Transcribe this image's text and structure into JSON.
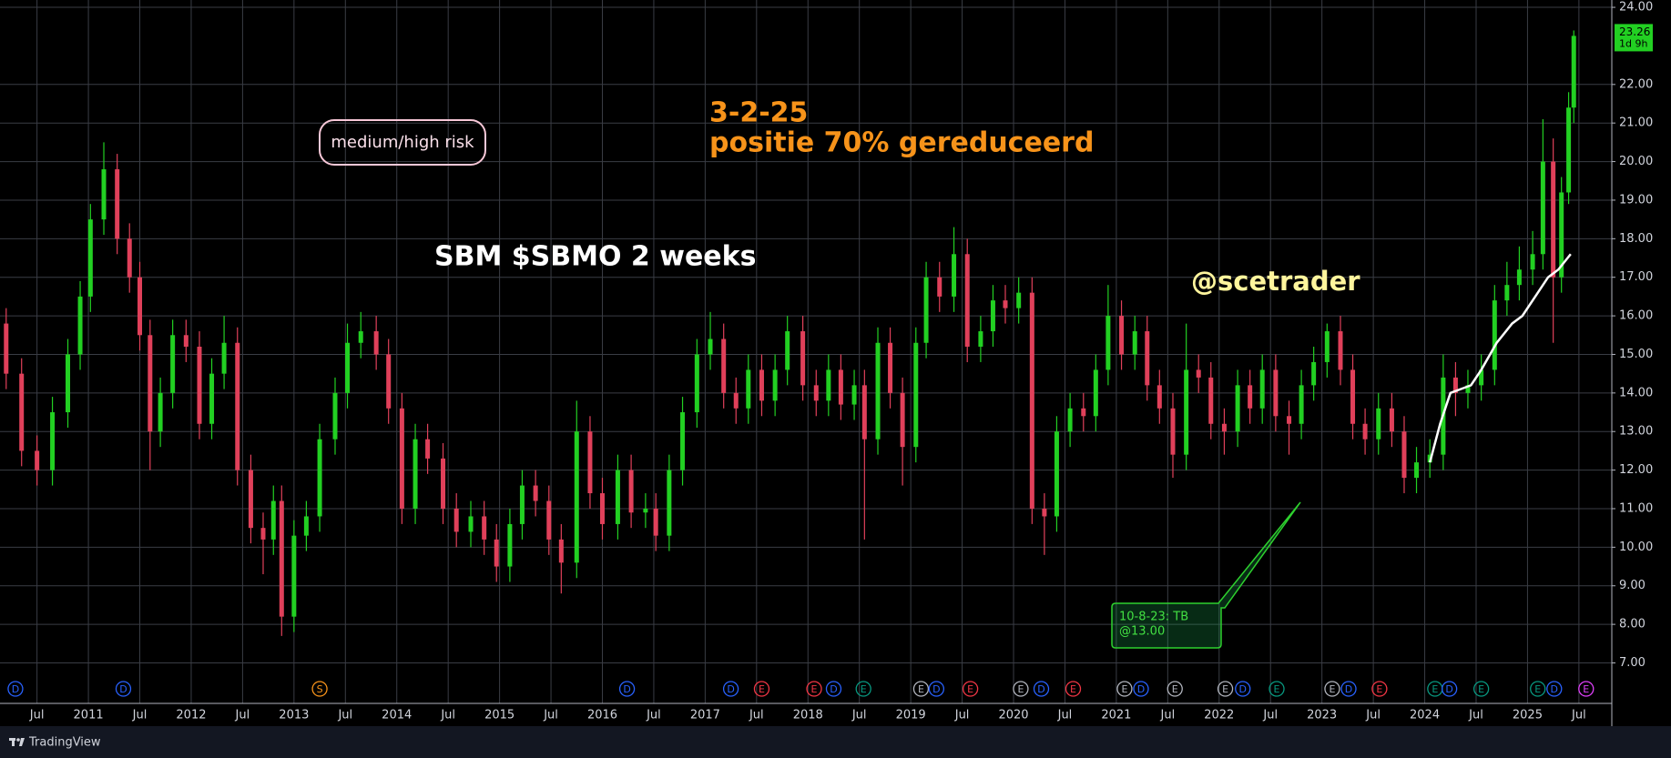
{
  "chart_data": {
    "type": "candlestick",
    "title": "SBM $SBMO 2 weeks",
    "risk_label": "medium/high risk",
    "note_date": "3-2-25",
    "note_text": "positie 70% gereduceerd",
    "author": "@scetrader",
    "callout": [
      "10-8-23: TB",
      "@13.00"
    ],
    "brand": "TradingView",
    "last_price": 23.26,
    "countdown": "1d 9h",
    "up_color": "#22d022",
    "down_color": "#e0405a",
    "grid": true,
    "xlim": [
      2010.14,
      2025.82
    ],
    "ylim": [
      5.95,
      24.19
    ],
    "yticks": [
      {
        "value": 7,
        "label": "7.00"
      },
      {
        "value": 8,
        "label": "8.00"
      },
      {
        "value": 9,
        "label": "9.00"
      },
      {
        "value": 10,
        "label": "10.00"
      },
      {
        "value": 11,
        "label": "11.00"
      },
      {
        "value": 12,
        "label": "12.00"
      },
      {
        "value": 13,
        "label": "13.00"
      },
      {
        "value": 14,
        "label": "14.00"
      },
      {
        "value": 15,
        "label": "15.00"
      },
      {
        "value": 16,
        "label": "16.00"
      },
      {
        "value": 17,
        "label": "17.00"
      },
      {
        "value": 18,
        "label": "18.00"
      },
      {
        "value": 19,
        "label": "19.00"
      },
      {
        "value": 20,
        "label": "20.00"
      },
      {
        "value": 21,
        "label": "21.00"
      },
      {
        "value": 22,
        "label": "22.00"
      },
      {
        "value": 24,
        "label": "24.00"
      }
    ],
    "xticks": [
      {
        "value": 2010.5,
        "label": "Jul"
      },
      2011,
      {
        "value": 2011.5,
        "label": "Jul"
      },
      2012,
      {
        "value": 2012.5,
        "label": "Jul"
      },
      2013,
      {
        "value": 2013.5,
        "label": "Jul"
      },
      2014,
      {
        "value": 2014.5,
        "label": "Jul"
      },
      2015,
      {
        "value": 2015.5,
        "label": "Jul"
      },
      2016,
      {
        "value": 2016.5,
        "label": "Jul"
      },
      2017,
      {
        "value": 2017.5,
        "label": "Jul"
      },
      2018,
      {
        "value": 2018.5,
        "label": "Jul"
      },
      2019,
      {
        "value": 2019.5,
        "label": "Jul"
      },
      2020,
      {
        "value": 2020.5,
        "label": "Jul"
      },
      2021,
      {
        "value": 2021.5,
        "label": "Jul"
      },
      2022,
      {
        "value": 2022.5,
        "label": "Jul"
      },
      2023,
      {
        "value": 2023.5,
        "label": "Jul"
      },
      2024,
      {
        "value": 2024.5,
        "label": "Jul"
      },
      2025,
      {
        "value": 2025.5,
        "label": "Jul"
      }
    ],
    "x": [
      2010.2,
      2010.35,
      2010.5,
      2010.65,
      2010.8,
      2010.92,
      2011.02,
      2011.15,
      2011.28,
      2011.4,
      2011.5,
      2011.6,
      2011.7,
      2011.82,
      2011.95,
      2012.08,
      2012.2,
      2012.32,
      2012.45,
      2012.58,
      2012.7,
      2012.8,
      2012.88,
      2013.0,
      2013.12,
      2013.25,
      2013.4,
      2013.52,
      2013.65,
      2013.8,
      2013.92,
      2014.05,
      2014.18,
      2014.3,
      2014.45,
      2014.58,
      2014.72,
      2014.85,
      2014.97,
      2015.1,
      2015.22,
      2015.35,
      2015.48,
      2015.6,
      2015.75,
      2015.88,
      2016.0,
      2016.15,
      2016.28,
      2016.42,
      2016.52,
      2016.65,
      2016.78,
      2016.92,
      2017.05,
      2017.18,
      2017.3,
      2017.42,
      2017.55,
      2017.68,
      2017.8,
      2017.95,
      2018.08,
      2018.2,
      2018.32,
      2018.45,
      2018.55,
      2018.68,
      2018.8,
      2018.92,
      2019.05,
      2019.15,
      2019.28,
      2019.42,
      2019.55,
      2019.68,
      2019.8,
      2019.92,
      2020.05,
      2020.18,
      2020.3,
      2020.42,
      2020.55,
      2020.68,
      2020.8,
      2020.92,
      2021.05,
      2021.18,
      2021.3,
      2021.42,
      2021.55,
      2021.68,
      2021.8,
      2021.92,
      2022.05,
      2022.18,
      2022.3,
      2022.42,
      2022.55,
      2022.68,
      2022.8,
      2022.92,
      2023.05,
      2023.18,
      2023.3,
      2023.42,
      2023.55,
      2023.68,
      2023.8,
      2023.92,
      2024.05,
      2024.18,
      2024.3,
      2024.42,
      2024.55,
      2024.68,
      2024.8,
      2024.92,
      2025.05,
      2025.15,
      2025.25,
      2025.33,
      2025.4,
      2025.45
    ],
    "open": [
      15.8,
      14.5,
      12.5,
      12.0,
      13.5,
      15.0,
      16.5,
      18.5,
      19.8,
      18.0,
      17.0,
      15.5,
      13.0,
      14.0,
      15.5,
      15.2,
      13.2,
      14.5,
      15.3,
      12.0,
      10.5,
      10.2,
      11.2,
      8.2,
      10.3,
      10.8,
      12.8,
      14.0,
      15.3,
      15.6,
      15.0,
      13.6,
      11.0,
      12.8,
      12.3,
      11.0,
      10.4,
      10.8,
      10.2,
      9.5,
      10.6,
      11.6,
      11.2,
      10.2,
      9.6,
      13.0,
      11.4,
      10.6,
      12.0,
      10.9,
      11.0,
      10.3,
      12.0,
      13.5,
      15.0,
      15.4,
      14.0,
      13.6,
      14.6,
      13.8,
      14.6,
      15.6,
      14.2,
      13.8,
      14.6,
      13.7,
      14.2,
      12.8,
      15.3,
      14.0,
      12.6,
      15.3,
      17.0,
      16.5,
      17.6,
      15.2,
      15.6,
      16.4,
      16.2,
      16.6,
      11.0,
      10.8,
      13.0,
      13.6,
      13.4,
      14.6,
      16.0,
      15.0,
      15.6,
      14.2,
      13.6,
      12.4,
      14.6,
      14.4,
      13.2,
      13.0,
      14.2,
      13.6,
      14.6,
      13.4,
      13.2,
      14.2,
      14.8,
      15.6,
      14.6,
      13.2,
      12.8,
      13.6,
      13.0,
      11.8,
      12.2,
      12.4,
      14.4,
      14.0,
      14.2,
      14.6,
      16.4,
      16.8,
      17.2,
      17.6,
      20.0,
      17.0,
      19.2,
      21.4
    ],
    "high": [
      16.2,
      14.9,
      12.9,
      13.9,
      15.4,
      16.9,
      18.9,
      20.5,
      20.2,
      18.4,
      17.4,
      15.9,
      14.4,
      15.9,
      15.9,
      15.6,
      14.9,
      16.0,
      15.7,
      12.4,
      10.9,
      11.6,
      11.6,
      10.7,
      11.2,
      13.2,
      14.4,
      15.8,
      16.1,
      16.0,
      15.4,
      14.0,
      13.2,
      13.2,
      12.7,
      11.4,
      11.2,
      11.2,
      10.6,
      11.0,
      12.0,
      12.0,
      11.6,
      10.6,
      13.8,
      13.4,
      11.8,
      12.4,
      12.4,
      11.4,
      11.4,
      12.4,
      13.9,
      15.4,
      16.1,
      15.8,
      14.4,
      15.0,
      15.0,
      15.0,
      16.0,
      16.0,
      14.6,
      15.0,
      15.0,
      14.6,
      14.6,
      15.7,
      15.7,
      14.4,
      15.7,
      17.4,
      17.4,
      18.3,
      18.0,
      16.0,
      16.8,
      16.8,
      17.0,
      17.0,
      11.4,
      13.4,
      14.0,
      14.0,
      15.0,
      16.8,
      16.4,
      16.0,
      16.0,
      14.6,
      14.0,
      15.8,
      15.0,
      14.8,
      13.6,
      14.6,
      14.6,
      15.0,
      15.0,
      13.8,
      14.6,
      15.2,
      15.8,
      16.0,
      15.0,
      13.6,
      14.0,
      14.0,
      13.4,
      12.6,
      12.8,
      15.0,
      14.8,
      14.6,
      15.0,
      16.8,
      17.4,
      17.8,
      18.2,
      21.1,
      20.6,
      19.6,
      21.8,
      23.4
    ],
    "low": [
      14.1,
      12.1,
      11.6,
      11.6,
      13.1,
      14.6,
      16.1,
      18.1,
      17.6,
      16.6,
      15.1,
      12.0,
      12.6,
      13.6,
      14.8,
      12.8,
      12.8,
      14.1,
      11.6,
      10.1,
      9.3,
      9.8,
      7.7,
      7.8,
      9.9,
      10.4,
      12.4,
      13.6,
      14.9,
      14.6,
      13.2,
      10.6,
      10.6,
      11.9,
      10.6,
      10.0,
      10.0,
      9.8,
      9.1,
      9.1,
      10.2,
      10.8,
      9.8,
      8.8,
      9.2,
      11.0,
      10.2,
      10.2,
      10.5,
      10.5,
      9.9,
      9.9,
      11.6,
      13.1,
      14.6,
      13.6,
      13.2,
      13.2,
      13.4,
      13.4,
      14.2,
      13.8,
      13.4,
      13.4,
      13.3,
      13.3,
      10.2,
      12.4,
      13.6,
      11.6,
      12.2,
      14.9,
      16.1,
      16.1,
      14.8,
      14.8,
      15.2,
      15.8,
      15.8,
      10.6,
      9.8,
      10.4,
      12.6,
      13.0,
      13.0,
      14.2,
      14.6,
      14.6,
      13.8,
      13.2,
      11.8,
      12.0,
      14.0,
      12.8,
      12.4,
      12.6,
      13.2,
      13.2,
      13.0,
      12.4,
      12.8,
      13.8,
      14.4,
      14.2,
      12.8,
      12.4,
      12.4,
      12.6,
      11.4,
      11.4,
      11.8,
      12.0,
      13.4,
      13.6,
      13.8,
      14.2,
      16.0,
      16.4,
      16.8,
      17.2,
      15.3,
      16.6,
      18.9,
      21.0
    ],
    "close": [
      14.5,
      12.5,
      12.0,
      13.5,
      15.0,
      16.5,
      18.5,
      19.8,
      18.0,
      17.0,
      15.5,
      13.0,
      14.0,
      15.5,
      15.2,
      13.2,
      14.5,
      15.3,
      12.0,
      10.5,
      10.2,
      11.2,
      8.2,
      10.3,
      10.8,
      12.8,
      14.0,
      15.3,
      15.6,
      15.0,
      13.6,
      11.0,
      12.8,
      12.3,
      11.0,
      10.4,
      10.8,
      10.2,
      9.5,
      10.6,
      11.6,
      11.2,
      10.2,
      9.6,
      13.0,
      11.4,
      10.6,
      12.0,
      10.9,
      11.0,
      10.3,
      12.0,
      13.5,
      15.0,
      15.4,
      14.0,
      13.6,
      14.6,
      13.8,
      14.6,
      15.6,
      14.2,
      13.8,
      14.6,
      13.7,
      14.2,
      12.8,
      15.3,
      14.0,
      12.6,
      15.3,
      17.0,
      16.5,
      17.6,
      15.2,
      15.6,
      16.4,
      16.2,
      16.6,
      11.0,
      10.8,
      13.0,
      13.6,
      13.4,
      14.6,
      16.0,
      15.0,
      15.6,
      14.2,
      13.6,
      12.4,
      14.6,
      14.4,
      13.2,
      13.0,
      14.2,
      13.6,
      14.6,
      13.4,
      13.2,
      14.2,
      14.8,
      15.6,
      14.6,
      13.2,
      12.8,
      13.6,
      13.0,
      11.8,
      12.2,
      12.4,
      14.4,
      14.0,
      14.2,
      14.6,
      16.4,
      16.8,
      17.2,
      17.6,
      20.0,
      17.0,
      19.2,
      21.4,
      23.26
    ],
    "moving_average": {
      "color": "#ffffff",
      "x": [
        2024.05,
        2024.15,
        2024.25,
        2024.35,
        2024.45,
        2024.55,
        2024.7,
        2024.85,
        2024.95,
        2025.1,
        2025.2,
        2025.3,
        2025.42
      ],
      "values": [
        12.2,
        13.2,
        14.0,
        14.1,
        14.2,
        14.6,
        15.3,
        15.8,
        16.0,
        16.6,
        17.0,
        17.2,
        17.6
      ]
    },
    "events": [
      {
        "x": 2010.29,
        "label": "D",
        "color": "#2962ff"
      },
      {
        "x": 2011.34,
        "label": "D",
        "color": "#2962ff"
      },
      {
        "x": 2013.25,
        "label": "S",
        "color": "#f7931a"
      },
      {
        "x": 2016.24,
        "label": "D",
        "color": "#2962ff"
      },
      {
        "x": 2017.25,
        "label": "D",
        "color": "#2962ff"
      },
      {
        "x": 2017.55,
        "label": "E",
        "color": "#f23645"
      },
      {
        "x": 2018.06,
        "label": "E",
        "color": "#f23645"
      },
      {
        "x": 2018.25,
        "label": "D",
        "color": "#2962ff"
      },
      {
        "x": 2018.54,
        "label": "E",
        "color": "#089981"
      },
      {
        "x": 2019.1,
        "label": "E",
        "color": "#b2b5be"
      },
      {
        "x": 2019.25,
        "label": "D",
        "color": "#2962ff"
      },
      {
        "x": 2019.58,
        "label": "E",
        "color": "#f23645"
      },
      {
        "x": 2020.07,
        "label": "E",
        "color": "#b2b5be"
      },
      {
        "x": 2020.27,
        "label": "D",
        "color": "#2962ff"
      },
      {
        "x": 2020.58,
        "label": "E",
        "color": "#f23645"
      },
      {
        "x": 2021.08,
        "label": "E",
        "color": "#b2b5be"
      },
      {
        "x": 2021.24,
        "label": "D",
        "color": "#2962ff"
      },
      {
        "x": 2021.57,
        "label": "E",
        "color": "#b2b5be"
      },
      {
        "x": 2022.06,
        "label": "E",
        "color": "#b2b5be"
      },
      {
        "x": 2022.23,
        "label": "D",
        "color": "#2962ff"
      },
      {
        "x": 2022.56,
        "label": "E",
        "color": "#089981"
      },
      {
        "x": 2023.1,
        "label": "E",
        "color": "#b2b5be"
      },
      {
        "x": 2023.26,
        "label": "D",
        "color": "#2962ff"
      },
      {
        "x": 2023.56,
        "label": "E",
        "color": "#f23645"
      },
      {
        "x": 2024.1,
        "label": "E",
        "color": "#089981"
      },
      {
        "x": 2024.24,
        "label": "D",
        "color": "#2962ff"
      },
      {
        "x": 2024.55,
        "label": "E",
        "color": "#089981"
      },
      {
        "x": 2025.1,
        "label": "E",
        "color": "#089981"
      },
      {
        "x": 2025.26,
        "label": "D",
        "color": "#2962ff"
      },
      {
        "x": 2025.57,
        "label": "E",
        "color": "#e040fb"
      }
    ]
  }
}
